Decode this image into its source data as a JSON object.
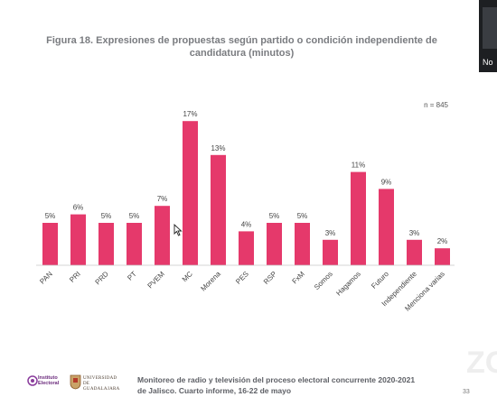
{
  "slide": {
    "title": "Figura 18. Expresiones de propuestas según partido o condición independiente de candidatura (minutos)",
    "sample_note": "n = 845",
    "footer_line1": "Monitoreo de radio y televisión del proceso electoral concurrente 2020-2021",
    "footer_line2": "de Jalisco. Cuarto informe, 16-22 de mayo",
    "page_number": "33",
    "logo_iec_lines": [
      "Instituto",
      "Electoral"
    ],
    "logo_udg_lines": [
      "UNIVERSIDAD DE",
      "GUADALAJARA"
    ],
    "watermark": "ZO",
    "video_label": "No",
    "icons": [
      "iec-logo-icon",
      "udg-seal-icon",
      "mouse-cursor-icon"
    ]
  },
  "colors": {
    "bar": "#e5396b",
    "title": "#7a7c80",
    "axis": "#c8c8c8"
  },
  "chart_data": {
    "type": "bar",
    "title": "Figura 18. Expresiones de propuestas según partido o condición independiente de candidatura (minutos)",
    "categories": [
      "PAN",
      "PRI",
      "PRD",
      "PT",
      "PVEM",
      "MC",
      "Morena",
      "PES",
      "RSP",
      "FxM",
      "Somos",
      "Hagamos",
      "Futuro",
      "Independiente",
      "Menciona varias"
    ],
    "values": [
      5,
      6,
      5,
      5,
      7,
      17,
      13,
      4,
      5,
      5,
      3,
      11,
      9,
      3,
      2
    ],
    "labels": [
      "5%",
      "6%",
      "5%",
      "5%",
      "7%",
      "17%",
      "13%",
      "4%",
      "5%",
      "5%",
      "3%",
      "11%",
      "9%",
      "3%",
      "2%"
    ],
    "unit": "%",
    "ylim": [
      0,
      18
    ],
    "grid": false,
    "legend": "none"
  }
}
